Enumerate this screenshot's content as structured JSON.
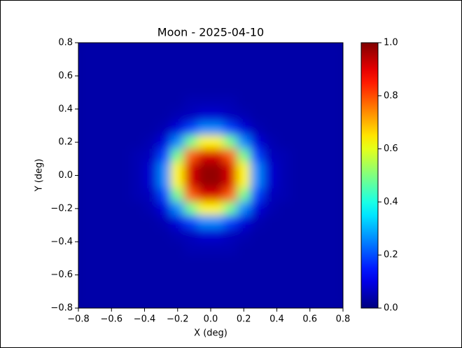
{
  "chart_data": {
    "type": "heatmap",
    "title": "Moon - 2025-04-10",
    "x_label": "X (deg)",
    "y_label": "Y (deg)",
    "xlim": [
      -0.8,
      0.8
    ],
    "ylim": [
      -0.8,
      0.8
    ],
    "xticks": [
      {
        "value": -0.8,
        "label": "−0.8"
      },
      {
        "value": -0.6,
        "label": "−0.6"
      },
      {
        "value": -0.4,
        "label": "−0.4"
      },
      {
        "value": -0.2,
        "label": "−0.2"
      },
      {
        "value": 0,
        "label": "0.0"
      },
      0.2,
      0.4,
      0.6,
      0.8
    ],
    "yticks": [
      {
        "value": -0.8,
        "label": "−0.8"
      },
      {
        "value": -0.6,
        "label": "−0.6"
      },
      {
        "value": -0.4,
        "label": "−0.4"
      },
      {
        "value": -0.2,
        "label": "−0.2"
      },
      {
        "value": 0,
        "label": "0.0"
      },
      0.2,
      0.4,
      0.6,
      0.8
    ],
    "colormap": "jet",
    "colorbar": {
      "lim": [
        0,
        1
      ],
      "ticks": [
        {
          "value": 0,
          "label": "0.0"
        },
        0.2,
        0.4,
        0.6,
        0.8,
        {
          "value": 1,
          "label": "1.0"
        }
      ]
    },
    "z": [
      [
        0.04,
        0.04,
        0.04,
        0.04,
        0.04,
        0.04,
        0.04,
        0.04,
        0.04,
        0.04,
        0.04,
        0.04,
        0.04,
        0.04,
        0.04,
        0.04,
        0.04,
        0.04,
        0.04,
        0.04
      ],
      [
        0.04,
        0.04,
        0.04,
        0.04,
        0.04,
        0.04,
        0.04,
        0.04,
        0.04,
        0.04,
        0.04,
        0.04,
        0.04,
        0.04,
        0.04,
        0.04,
        0.04,
        0.04,
        0.04,
        0.04
      ],
      [
        0.04,
        0.04,
        0.04,
        0.04,
        0.04,
        0.04,
        0.04,
        0.04,
        0.04,
        0.04,
        0.04,
        0.04,
        0.04,
        0.04,
        0.04,
        0.04,
        0.04,
        0.04,
        0.04,
        0.04
      ],
      [
        0.04,
        0.04,
        0.04,
        0.04,
        0.04,
        0.04,
        0.04,
        0.04,
        0.04,
        0.04,
        0.04,
        0.04,
        0.04,
        0.04,
        0.04,
        0.04,
        0.04,
        0.04,
        0.04,
        0.04
      ],
      [
        0.04,
        0.04,
        0.04,
        0.04,
        0.04,
        0.04,
        0.04,
        0.04,
        0.05,
        0.05,
        0.05,
        0.05,
        0.04,
        0.04,
        0.04,
        0.04,
        0.04,
        0.04,
        0.04,
        0.04
      ],
      [
        0.04,
        0.04,
        0.04,
        0.04,
        0.04,
        0.04,
        0.04,
        0.05,
        0.06,
        0.08,
        0.08,
        0.06,
        0.05,
        0.04,
        0.04,
        0.04,
        0.04,
        0.04,
        0.04,
        0.04
      ],
      [
        0.04,
        0.04,
        0.04,
        0.04,
        0.04,
        0.04,
        0.05,
        0.09,
        0.19,
        0.26,
        0.26,
        0.19,
        0.09,
        0.05,
        0.04,
        0.04,
        0.04,
        0.04,
        0.04,
        0.04
      ],
      [
        0.04,
        0.04,
        0.04,
        0.04,
        0.04,
        0.05,
        0.09,
        0.26,
        0.49,
        0.63,
        0.63,
        0.49,
        0.26,
        0.09,
        0.05,
        0.04,
        0.04,
        0.04,
        0.04,
        0.04
      ],
      [
        0.04,
        0.04,
        0.04,
        0.04,
        0.05,
        0.06,
        0.19,
        0.49,
        0.78,
        0.91,
        0.91,
        0.78,
        0.49,
        0.19,
        0.06,
        0.05,
        0.04,
        0.04,
        0.04,
        0.04
      ],
      [
        0.04,
        0.04,
        0.04,
        0.04,
        0.05,
        0.08,
        0.26,
        0.63,
        0.91,
        0.98,
        0.98,
        0.91,
        0.63,
        0.26,
        0.08,
        0.05,
        0.04,
        0.04,
        0.04,
        0.04
      ],
      [
        0.04,
        0.04,
        0.04,
        0.04,
        0.05,
        0.08,
        0.26,
        0.63,
        0.91,
        0.98,
        0.98,
        0.91,
        0.63,
        0.26,
        0.08,
        0.05,
        0.04,
        0.04,
        0.04,
        0.04
      ],
      [
        0.04,
        0.04,
        0.04,
        0.04,
        0.05,
        0.06,
        0.19,
        0.49,
        0.78,
        0.91,
        0.91,
        0.78,
        0.49,
        0.19,
        0.06,
        0.05,
        0.04,
        0.04,
        0.04,
        0.04
      ],
      [
        0.04,
        0.04,
        0.04,
        0.04,
        0.04,
        0.05,
        0.09,
        0.26,
        0.49,
        0.63,
        0.63,
        0.49,
        0.26,
        0.09,
        0.05,
        0.04,
        0.04,
        0.04,
        0.04,
        0.04
      ],
      [
        0.04,
        0.04,
        0.04,
        0.04,
        0.04,
        0.04,
        0.05,
        0.09,
        0.19,
        0.26,
        0.26,
        0.19,
        0.09,
        0.05,
        0.04,
        0.04,
        0.04,
        0.04,
        0.04,
        0.04
      ],
      [
        0.04,
        0.04,
        0.04,
        0.04,
        0.04,
        0.04,
        0.04,
        0.05,
        0.06,
        0.08,
        0.08,
        0.06,
        0.05,
        0.04,
        0.04,
        0.04,
        0.04,
        0.04,
        0.04,
        0.04
      ],
      [
        0.04,
        0.04,
        0.04,
        0.04,
        0.04,
        0.04,
        0.04,
        0.04,
        0.05,
        0.05,
        0.05,
        0.05,
        0.04,
        0.04,
        0.04,
        0.04,
        0.04,
        0.04,
        0.04,
        0.04
      ],
      [
        0.04,
        0.04,
        0.04,
        0.04,
        0.04,
        0.04,
        0.04,
        0.04,
        0.04,
        0.04,
        0.04,
        0.04,
        0.04,
        0.04,
        0.04,
        0.04,
        0.04,
        0.04,
        0.04,
        0.04
      ],
      [
        0.04,
        0.04,
        0.04,
        0.04,
        0.04,
        0.04,
        0.04,
        0.04,
        0.04,
        0.04,
        0.04,
        0.04,
        0.04,
        0.04,
        0.04,
        0.04,
        0.04,
        0.04,
        0.04,
        0.04
      ],
      [
        0.04,
        0.04,
        0.04,
        0.04,
        0.04,
        0.04,
        0.04,
        0.04,
        0.04,
        0.04,
        0.04,
        0.04,
        0.04,
        0.04,
        0.04,
        0.04,
        0.04,
        0.04,
        0.04,
        0.04
      ],
      [
        0.04,
        0.04,
        0.04,
        0.04,
        0.04,
        0.04,
        0.04,
        0.04,
        0.04,
        0.04,
        0.04,
        0.04,
        0.04,
        0.04,
        0.04,
        0.04,
        0.04,
        0.04,
        0.04,
        0.04
      ]
    ]
  }
}
